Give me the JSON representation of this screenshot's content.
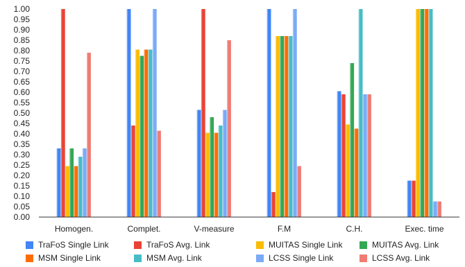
{
  "chart_data": {
    "type": "bar",
    "categories": [
      "Homogen.",
      "Complet.",
      "V-measure",
      "F.M",
      "C.H.",
      "Exec. time"
    ],
    "ylim": [
      0,
      1
    ],
    "y_ticks": [
      "0.00",
      "0.05",
      "0.10",
      "0.15",
      "0.20",
      "0.25",
      "0.30",
      "0.35",
      "0.40",
      "0.45",
      "0.50",
      "0.55",
      "0.60",
      "0.65",
      "0.70",
      "0.75",
      "0.80",
      "0.85",
      "0.90",
      "0.95",
      "1.00"
    ],
    "grid": false,
    "legend_position": "bottom",
    "series": [
      {
        "name": "TraFoS Single Link",
        "color": "#4285f4",
        "values": [
          0.33,
          1.0,
          0.515,
          1.0,
          0.605,
          0.175
        ]
      },
      {
        "name": "TraFoS Avg. Link",
        "color": "#ea4335",
        "values": [
          1.0,
          0.44,
          1.0,
          0.12,
          0.59,
          0.175
        ]
      },
      {
        "name": "MUITAS Single Link",
        "color": "#fbbc04",
        "values": [
          0.245,
          0.805,
          0.405,
          0.87,
          0.445,
          1.0
        ]
      },
      {
        "name": "MUITAS Avg. Link",
        "color": "#34a853",
        "values": [
          0.33,
          0.775,
          0.48,
          0.87,
          0.74,
          1.0
        ]
      },
      {
        "name": "MSM Single Link",
        "color": "#ff6d01",
        "values": [
          0.245,
          0.805,
          0.405,
          0.87,
          0.425,
          1.0
        ]
      },
      {
        "name": "MSM Avg. Link",
        "color": "#46bdc6",
        "values": [
          0.29,
          0.805,
          0.44,
          0.87,
          1.0,
          1.0
        ]
      },
      {
        "name": "LCSS Single Link",
        "color": "#7baaf7",
        "values": [
          0.33,
          1.0,
          0.515,
          1.0,
          0.59,
          0.075
        ]
      },
      {
        "name": "LCSS Avg. Link",
        "color": "#f07b72",
        "values": [
          0.79,
          0.415,
          0.85,
          0.245,
          0.59,
          0.075
        ]
      }
    ]
  }
}
